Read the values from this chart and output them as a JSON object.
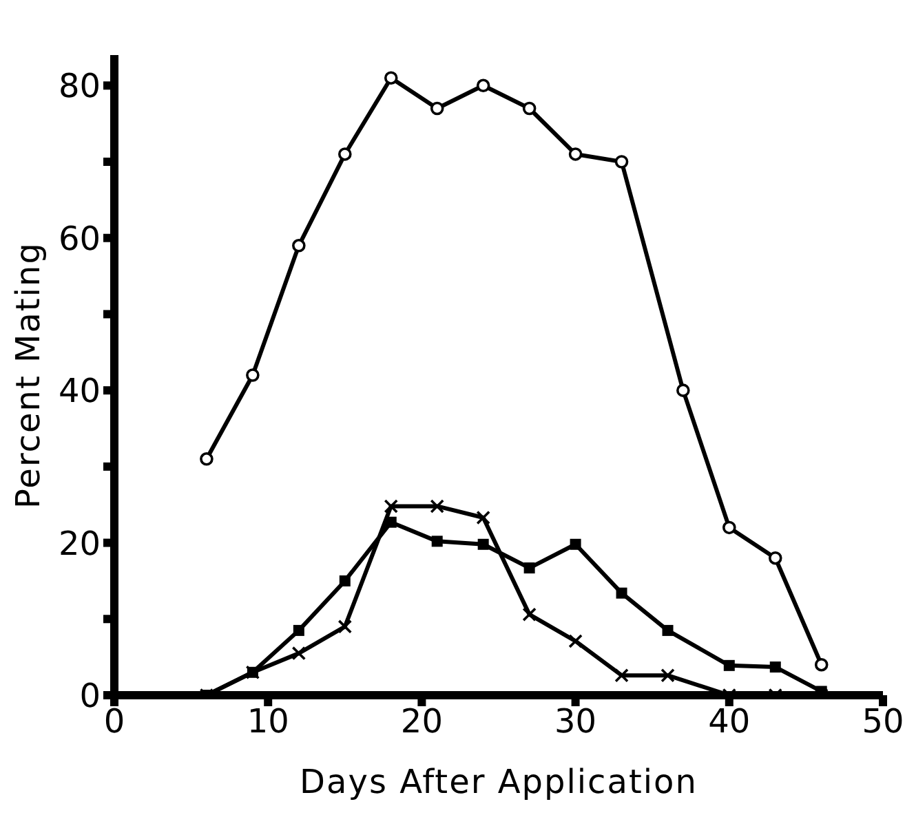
{
  "chart_data": {
    "type": "line",
    "xlabel": "Days After Application",
    "ylabel": "Percent Mating",
    "xlim": [
      0,
      50
    ],
    "xticks": [
      0,
      10,
      20,
      30,
      40,
      50
    ],
    "ylim": [
      0,
      84
    ],
    "yticks": [
      0,
      {
        "value": 10,
        "label": null
      },
      20,
      {
        "value": 30,
        "label": null
      },
      40,
      {
        "value": 50,
        "label": null
      },
      60,
      {
        "value": 70,
        "label": null
      },
      80
    ],
    "line_style": "solid",
    "series": [
      {
        "color": "#000000",
        "marker": "circle",
        "x": [
          6,
          9,
          12,
          15,
          18,
          21,
          24,
          27,
          30,
          33,
          37,
          40,
          43,
          46
        ],
        "values": [
          31,
          42,
          59,
          71,
          81,
          77,
          80,
          77,
          71,
          70,
          40,
          22,
          18,
          4
        ]
      },
      {
        "color": "#000000",
        "marker": "cross",
        "x": [
          6,
          9,
          12,
          15,
          18,
          21,
          24,
          27,
          30,
          33,
          36,
          40,
          43,
          46
        ],
        "values": [
          0,
          3,
          5.5,
          9,
          24.8,
          24.8,
          23.3,
          10.6,
          7.1,
          2.6,
          2.6,
          0,
          0,
          0
        ]
      },
      {
        "color": "#000000",
        "marker": "square",
        "x": [
          6,
          9,
          12,
          15,
          18,
          21,
          24,
          27,
          30,
          33,
          36,
          40,
          43,
          46
        ],
        "values": [
          0,
          3,
          8.5,
          15,
          22.7,
          20.2,
          19.8,
          16.7,
          19.8,
          13.4,
          8.5,
          3.9,
          3.7,
          0.5
        ]
      }
    ]
  }
}
